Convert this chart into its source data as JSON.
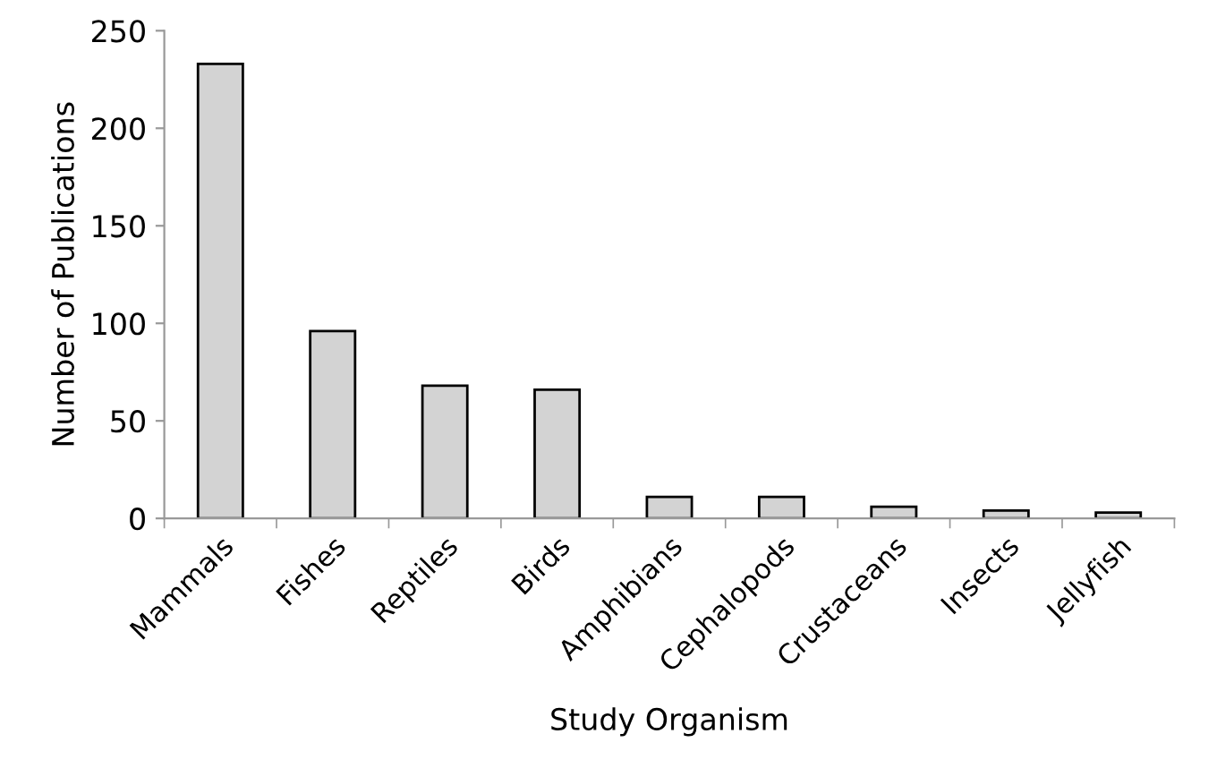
{
  "chart_data": {
    "type": "bar",
    "xlabel": "Study Organism",
    "ylabel": "Number of Publications",
    "categories": [
      "Mammals",
      "Fishes",
      "Reptiles",
      "Birds",
      "Amphibians",
      "Cephalopods",
      "Crustaceans",
      "Insects",
      "Jellyfish"
    ],
    "values": [
      233,
      96,
      68,
      66,
      11,
      11,
      6,
      4,
      3
    ],
    "color": "#d3d3d3",
    "ylim": [
      0,
      250
    ],
    "yticks": [
      0,
      50,
      100,
      150,
      200,
      250
    ],
    "grid": false
  }
}
